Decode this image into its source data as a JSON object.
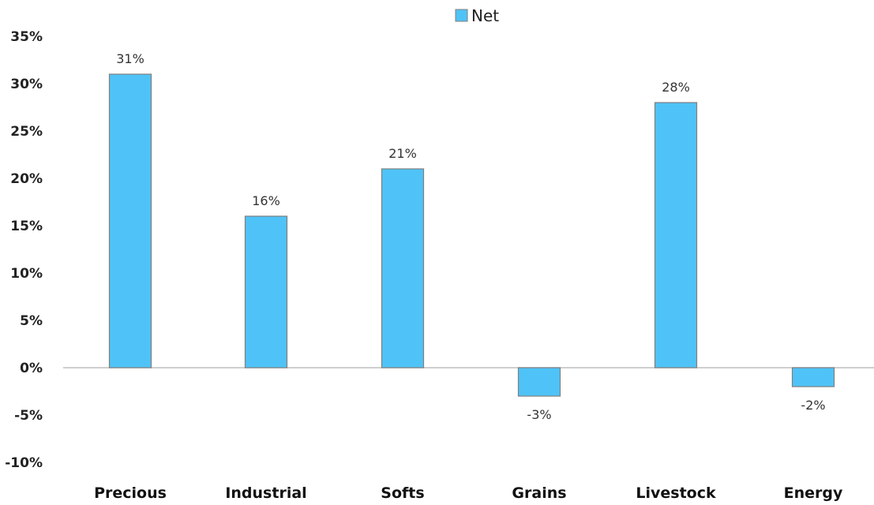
{
  "chart_data": {
    "type": "bar",
    "categories": [
      "Precious",
      "Industrial",
      "Softs",
      "Grains",
      "Livestock",
      "Energy"
    ],
    "series": [
      {
        "name": "Net",
        "values": [
          31,
          16,
          21,
          -3,
          28,
          -2
        ],
        "color": "#4FC3F7"
      }
    ],
    "data_labels": [
      "31%",
      "16%",
      "21%",
      "-3%",
      "28%",
      "-2%"
    ],
    "y_ticks": [
      "35%",
      "30%",
      "25%",
      "20%",
      "15%",
      "10%",
      "5%",
      "0%",
      "-5%",
      "-10%"
    ],
    "y_tick_values": [
      35,
      30,
      25,
      20,
      15,
      10,
      5,
      0,
      -5,
      -10
    ],
    "ylim": [
      -10,
      35
    ],
    "legend": {
      "position": "top",
      "label": "Net"
    },
    "grid": false,
    "bar_border_color": "#7F7F7F",
    "axis_color": "#BFBFBF"
  }
}
